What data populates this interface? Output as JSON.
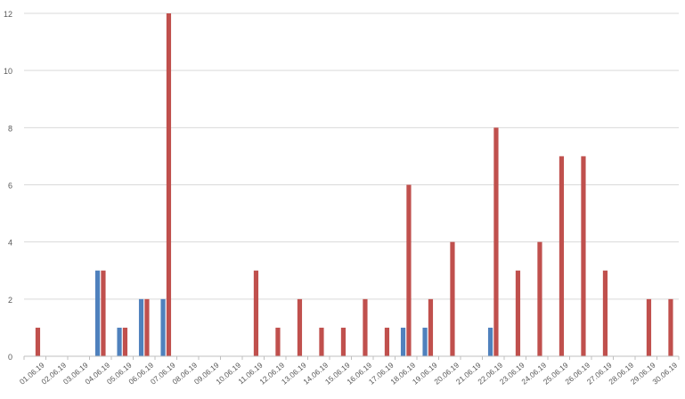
{
  "chart_data": {
    "type": "bar",
    "categories": [
      "01.06.19",
      "02.06.19",
      "03.06.19",
      "04.06.19",
      "05.06.19",
      "06.06.19",
      "07.06.19",
      "08.06.19",
      "09.06.19",
      "10.06.19",
      "11.06.19",
      "12.06.19",
      "13.06.19",
      "14.06.19",
      "15.06.19",
      "16.06.19",
      "17.06.19",
      "18.06.19",
      "19.06.19",
      "20.06.19",
      "21.06.19",
      "22.06.19",
      "23.06.19",
      "24.06.19",
      "25.06.19",
      "26.06.19",
      "27.06.19",
      "28.06.19",
      "29.06.19",
      "30.06.19"
    ],
    "series": [
      {
        "color": "#4f81bd",
        "values": [
          0,
          0,
          0,
          3,
          1,
          2,
          2,
          0,
          0,
          0,
          0,
          0,
          0,
          0,
          0,
          0,
          0,
          1,
          1,
          0,
          0,
          1,
          0,
          0,
          0,
          0,
          0,
          0,
          0,
          0
        ]
      },
      {
        "color": "#c0504d",
        "values": [
          1,
          0,
          0,
          3,
          1,
          2,
          12,
          0,
          0,
          0,
          3,
          1,
          2,
          1,
          1,
          2,
          1,
          6,
          2,
          4,
          0,
          8,
          3,
          4,
          7,
          7,
          3,
          0,
          2,
          2
        ]
      }
    ],
    "title": "",
    "xlabel": "",
    "ylabel": "",
    "ylim": [
      0,
      12
    ],
    "yticks": [
      0,
      2,
      4,
      6,
      8,
      10,
      12
    ],
    "grid": true,
    "legend": "none",
    "gridline_color": "#d9d9d9",
    "axis_color": "#bfbfbf"
  }
}
